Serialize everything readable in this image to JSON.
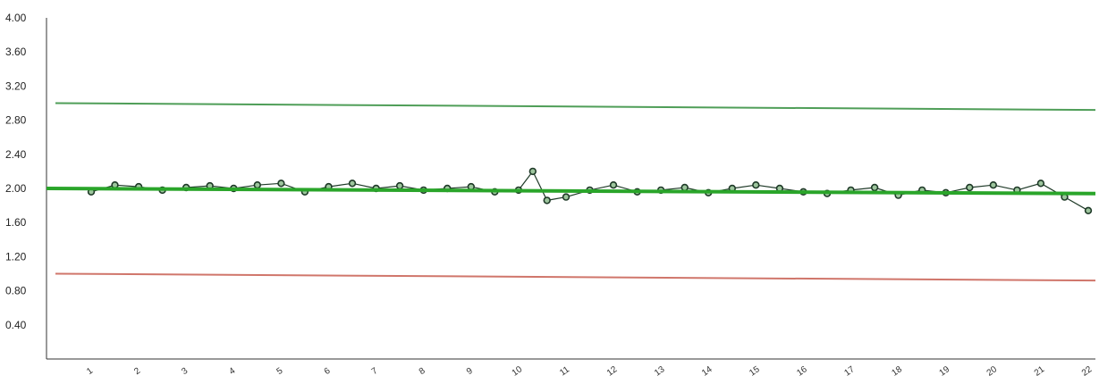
{
  "chart_data": {
    "type": "line",
    "title": "",
    "xlabel": "",
    "ylabel": "",
    "ylim": [
      0,
      4
    ],
    "y_ticks": [
      "4.00",
      "3.60",
      "3.20",
      "2.80",
      "2.40",
      "2.00",
      "1.60",
      "1.20",
      "0.80",
      "0.40"
    ],
    "x_ticks": [
      "1",
      "2",
      "3",
      "4",
      "5",
      "6",
      "7",
      "8",
      "9",
      "10",
      "11",
      "12",
      "13",
      "14",
      "15",
      "16",
      "17",
      "18",
      "19",
      "20",
      "21",
      "22"
    ],
    "grid": false,
    "legend": "none",
    "series": [
      {
        "role": "measurements",
        "marker_color": "#1f3a28",
        "x": [
          1.0,
          1.5,
          2.0,
          2.5,
          3.0,
          3.5,
          4.0,
          4.5,
          5.0,
          5.5,
          6.0,
          6.5,
          7.0,
          7.5,
          8.0,
          8.5,
          9.0,
          9.5,
          10.0,
          10.3,
          10.6,
          11.0,
          11.5,
          12.0,
          12.5,
          13.0,
          13.5,
          14.0,
          14.5,
          15.0,
          15.5,
          16.0,
          16.5,
          17.0,
          17.5,
          18.0,
          18.5,
          19.0,
          19.5,
          20.0,
          20.5,
          21.0,
          21.5,
          22.0
        ],
        "y": [
          1.96,
          2.04,
          2.02,
          1.98,
          2.01,
          2.03,
          2.0,
          2.04,
          2.06,
          1.96,
          2.02,
          2.06,
          2.0,
          2.03,
          1.98,
          2.0,
          2.02,
          1.96,
          1.98,
          2.2,
          1.86,
          1.9,
          1.98,
          2.04,
          1.96,
          1.98,
          2.01,
          1.95,
          2.0,
          2.04,
          2.0,
          1.96,
          1.94,
          1.98,
          2.01,
          1.92,
          1.98,
          1.95,
          2.01,
          2.04,
          1.98,
          2.06,
          1.9,
          1.74
        ]
      },
      {
        "role": "mean",
        "color": "#2aa52a",
        "x": [
          1,
          22
        ],
        "y": [
          2.0,
          1.94
        ]
      },
      {
        "role": "upper-limit",
        "color": "#4f9e58",
        "x": [
          1,
          22
        ],
        "y": [
          3.0,
          2.92
        ]
      },
      {
        "role": "lower-limit",
        "color": "#d0766b",
        "x": [
          1,
          22
        ],
        "y": [
          1.0,
          0.92
        ]
      }
    ]
  }
}
